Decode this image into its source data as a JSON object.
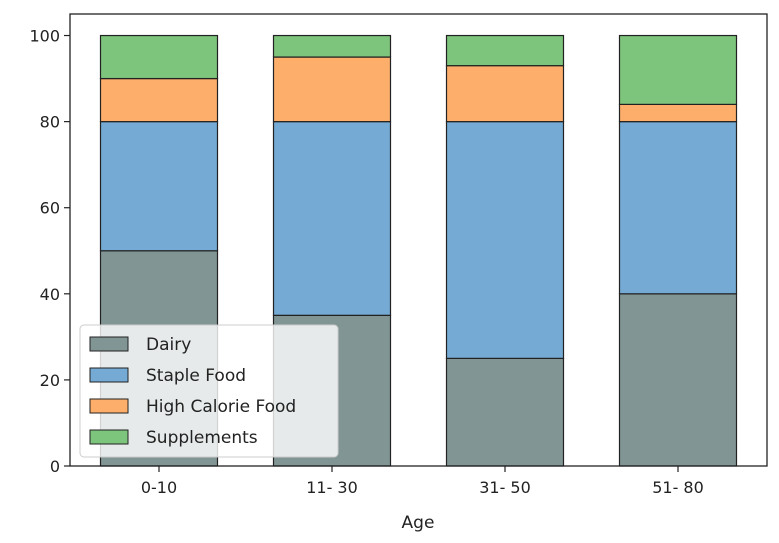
{
  "chart_data": {
    "type": "bar",
    "stacked": true,
    "title": "",
    "xlabel": "Age",
    "ylabel": "",
    "categories": [
      "0-10",
      "11- 30",
      "31- 50",
      "51- 80"
    ],
    "series": [
      {
        "name": "Dairy",
        "values": [
          50,
          35,
          25,
          40
        ],
        "color": "#829595"
      },
      {
        "name": "Staple Food",
        "values": [
          30,
          45,
          55,
          40
        ],
        "color": "#74aad3"
      },
      {
        "name": "High Calorie Food",
        "values": [
          10,
          15,
          13,
          4
        ],
        "color": "#fdae6b"
      },
      {
        "name": "Supplements",
        "values": [
          10,
          5,
          7,
          16
        ],
        "color": "#7dc47c"
      }
    ],
    "ylim": [
      0,
      105
    ],
    "yticks": [
      0,
      20,
      40,
      60,
      80,
      100
    ],
    "grid": false,
    "legend_position": "lower-left"
  }
}
